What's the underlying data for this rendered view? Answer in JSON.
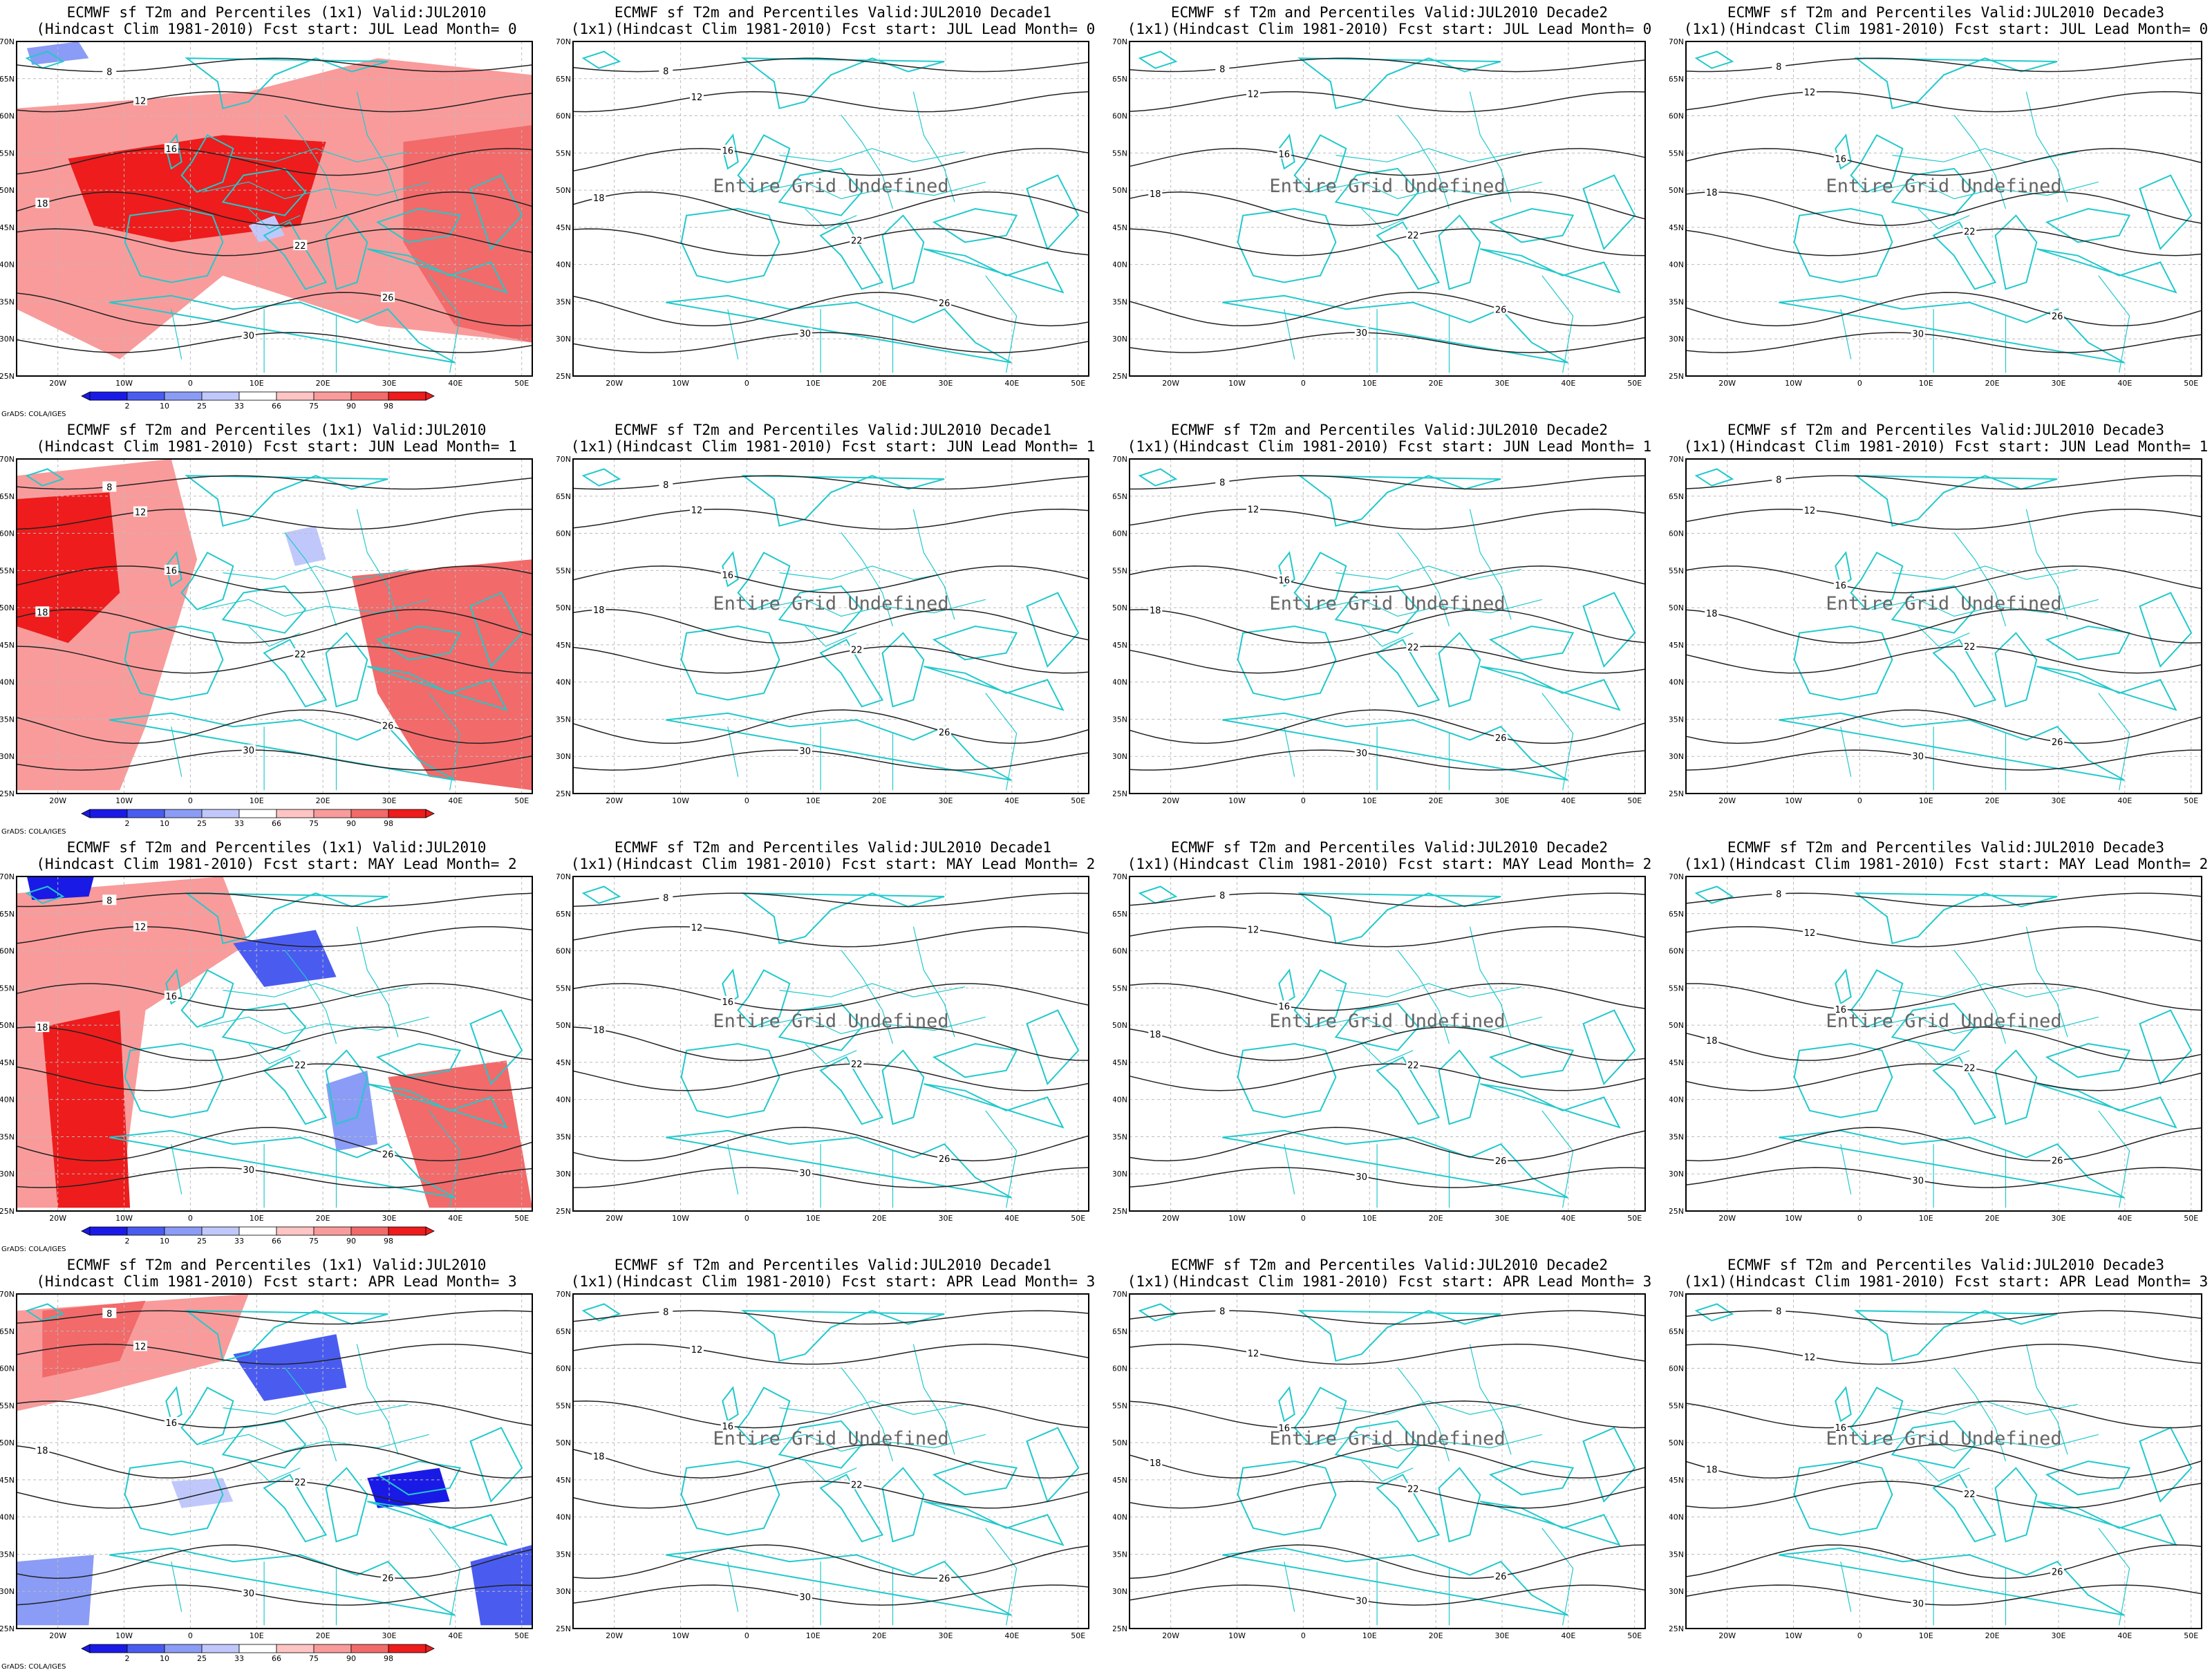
{
  "title_prefix": "ECMWF sf T2m and Percentiles",
  "valid": "Valid:JUL2010",
  "grads_credit": "GrADS: COLA/IGES",
  "undefined_text": "Entire Grid Undefined",
  "lat_labels": [
    "70N",
    "65N",
    "60N",
    "55N",
    "50N",
    "45N",
    "40N",
    "35N",
    "30N",
    "25N"
  ],
  "lon_labels": [
    "20W",
    "10W",
    "0",
    "10E",
    "20E",
    "30E",
    "40E",
    "50E"
  ],
  "colorbar_values": [
    "2",
    "10",
    "25",
    "33",
    "66",
    "75",
    "90",
    "98"
  ],
  "colors": {
    "coast": "#22c9cc",
    "contour": "#222222",
    "blue_2": "#1a1ae6",
    "blue_10": "#4a5cf0",
    "blue_25": "#8a9cf5",
    "blue_33": "#c0c8fb",
    "red_66": "#ffc4c4",
    "red_75": "#f99b9b",
    "red_90": "#f26a6a",
    "red_98": "#ee1c1c"
  },
  "rows": [
    {
      "month_panel": {
        "line1": "ECMWF sf T2m and Percentiles (1x1) Valid:JUL2010",
        "line2": "(Hindcast Clim 1981-2010) Fcst start: JUL  Lead Month= 0"
      },
      "decades": [
        {
          "line1": "ECMWF sf T2m and Percentiles Valid:JUL2010 Decade1",
          "line2": "(1x1)(Hindcast Clim 1981-2010) Fcst start: JUL  Lead Month= 0"
        },
        {
          "line1": "ECMWF sf T2m and Percentiles Valid:JUL2010 Decade2",
          "line2": "(1x1)(Hindcast Clim 1981-2010) Fcst start: JUL  Lead Month= 0"
        },
        {
          "line1": "ECMWF sf T2m and Percentiles Valid:JUL2010 Decade3",
          "line2": "(1x1)(Hindcast Clim 1981-2010) Fcst start: JUL  Lead Month= 0"
        }
      ]
    },
    {
      "month_panel": {
        "line1": "ECMWF sf T2m and Percentiles (1x1) Valid:JUL2010",
        "line2": "(Hindcast Clim 1981-2010) Fcst start: JUN  Lead Month= 1"
      },
      "decades": [
        {
          "line1": "ECMWF sf T2m and Percentiles Valid:JUL2010 Decade1",
          "line2": "(1x1)(Hindcast Clim 1981-2010) Fcst start: JUN  Lead Month= 1"
        },
        {
          "line1": "ECMWF sf T2m and Percentiles Valid:JUL2010 Decade2",
          "line2": "(1x1)(Hindcast Clim 1981-2010) Fcst start: JUN  Lead Month= 1"
        },
        {
          "line1": "ECMWF sf T2m and Percentiles Valid:JUL2010 Decade3",
          "line2": "(1x1)(Hindcast Clim 1981-2010) Fcst start: JUN  Lead Month= 1"
        }
      ]
    },
    {
      "month_panel": {
        "line1": "ECMWF sf T2m and Percentiles (1x1) Valid:JUL2010",
        "line2": "(Hindcast Clim 1981-2010) Fcst start: MAY  Lead Month= 2"
      },
      "decades": [
        {
          "line1": "ECMWF sf T2m and Percentiles Valid:JUL2010 Decade1",
          "line2": "(1x1)(Hindcast Clim 1981-2010) Fcst start: MAY  Lead Month= 2"
        },
        {
          "line1": "ECMWF sf T2m and Percentiles Valid:JUL2010 Decade2",
          "line2": "(1x1)(Hindcast Clim 1981-2010) Fcst start: MAY  Lead Month= 2"
        },
        {
          "line1": "ECMWF sf T2m and Percentiles Valid:JUL2010 Decade3",
          "line2": "(1x1)(Hindcast Clim 1981-2010) Fcst start: MAY  Lead Month= 2"
        }
      ]
    },
    {
      "month_panel": {
        "line1": "ECMWF sf T2m and Percentiles (1x1) Valid:JUL2010",
        "line2": "(Hindcast Clim 1981-2010) Fcst start: APR  Lead Month= 3"
      },
      "decades": [
        {
          "line1": "ECMWF sf T2m and Percentiles Valid:JUL2010 Decade1",
          "line2": "(1x1)(Hindcast Clim 1981-2010) Fcst start: APR  Lead Month= 3"
        },
        {
          "line1": "ECMWF sf T2m and Percentiles Valid:JUL2010 Decade2",
          "line2": "(1x1)(Hindcast Clim 1981-2010) Fcst start: APR  Lead Month= 3"
        },
        {
          "line1": "ECMWF sf T2m and Percentiles Valid:JUL2010 Decade3",
          "line2": "(1x1)(Hindcast Clim 1981-2010) Fcst start: APR  Lead Month= 3"
        }
      ]
    }
  ]
}
